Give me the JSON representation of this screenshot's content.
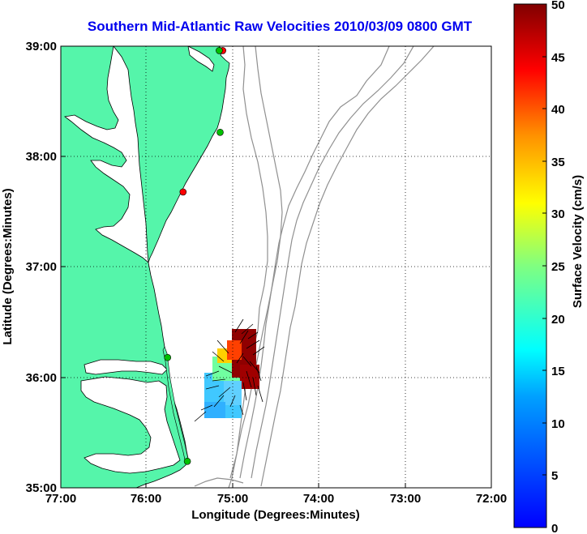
{
  "map": {
    "title": "Southern Mid-Atlantic Raw Velocities 2010/03/09 0800 GMT",
    "xlabel": "Longitude (Degrees:Minutes)",
    "ylabel": "Latitude (Degrees:Minutes)",
    "x_ticks": [
      "77:00",
      "76:00",
      "75:00",
      "74:00",
      "73:00",
      "72:00"
    ],
    "y_ticks": [
      "39:00",
      "38:00",
      "37:00",
      "36:00",
      "35:00"
    ],
    "lon_range": [
      -77,
      -72
    ],
    "lat_range": [
      35,
      39
    ],
    "grid": "dotted",
    "land_color": "#55f5aa",
    "water_color": "#ffffff",
    "stations": [
      {
        "lon": -75.12,
        "lat": 38.96,
        "color": "#ff0000"
      },
      {
        "lon": -75.16,
        "lat": 38.96,
        "color": "#00c000"
      },
      {
        "lon": -75.15,
        "lat": 38.22,
        "color": "#00c000"
      },
      {
        "lon": -75.58,
        "lat": 37.68,
        "color": "#ff0000"
      },
      {
        "lon": -75.76,
        "lat": 36.18,
        "color": "#00c000"
      },
      {
        "lon": -75.53,
        "lat": 35.24,
        "color": "#00c000"
      }
    ]
  },
  "colorbar": {
    "label": "Surface Velocity (cm/s)",
    "ticks": [
      "50",
      "45",
      "40",
      "35",
      "30",
      "25",
      "20",
      "15",
      "10",
      "5",
      "0"
    ],
    "min": 0,
    "max": 50,
    "colormap": "jet"
  }
}
